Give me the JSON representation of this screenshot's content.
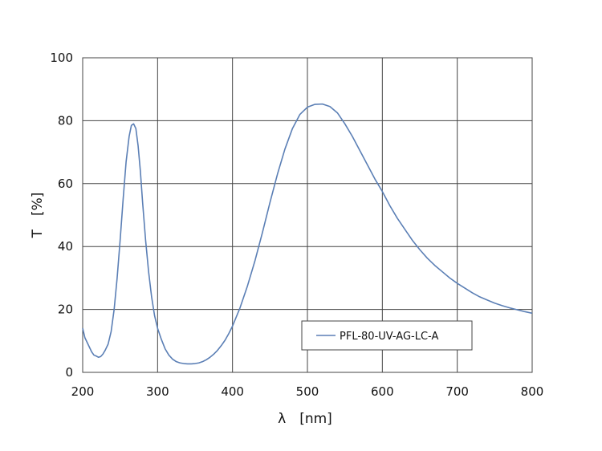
{
  "chart_data": {
    "type": "line",
    "title": "",
    "xlabel": "λ　[nm]",
    "ylabel": "T　[%]",
    "xlim": [
      200,
      800
    ],
    "ylim": [
      0,
      100
    ],
    "xticks": [
      200,
      300,
      400,
      500,
      600,
      700,
      800
    ],
    "yticks": [
      0,
      20,
      40,
      60,
      80,
      100
    ],
    "grid": true,
    "legend_position": "lower-right",
    "series": [
      {
        "name": "PFL-80-UV-AG-LC-A",
        "color": "#5b7fb5",
        "points": [
          [
            200,
            14
          ],
          [
            203,
            11
          ],
          [
            206,
            9.5
          ],
          [
            209,
            8
          ],
          [
            212,
            6.5
          ],
          [
            215,
            5.5
          ],
          [
            218,
            5.2
          ],
          [
            221,
            4.8
          ],
          [
            224,
            5
          ],
          [
            227,
            5.8
          ],
          [
            230,
            7
          ],
          [
            234,
            9
          ],
          [
            238,
            13
          ],
          [
            242,
            20
          ],
          [
            246,
            30
          ],
          [
            250,
            42
          ],
          [
            254,
            55
          ],
          [
            258,
            67
          ],
          [
            262,
            75
          ],
          [
            265,
            78.5
          ],
          [
            268,
            79
          ],
          [
            271,
            77.5
          ],
          [
            274,
            72
          ],
          [
            277,
            64
          ],
          [
            280,
            54
          ],
          [
            284,
            42
          ],
          [
            288,
            32
          ],
          [
            292,
            24
          ],
          [
            296,
            18
          ],
          [
            300,
            14
          ],
          [
            305,
            10.5
          ],
          [
            310,
            7.5
          ],
          [
            315,
            5.5
          ],
          [
            320,
            4.2
          ],
          [
            325,
            3.4
          ],
          [
            330,
            3
          ],
          [
            335,
            2.8
          ],
          [
            340,
            2.7
          ],
          [
            345,
            2.7
          ],
          [
            350,
            2.8
          ],
          [
            355,
            3
          ],
          [
            360,
            3.4
          ],
          [
            365,
            4
          ],
          [
            370,
            4.8
          ],
          [
            375,
            5.8
          ],
          [
            380,
            7
          ],
          [
            385,
            8.5
          ],
          [
            390,
            10.2
          ],
          [
            395,
            12.3
          ],
          [
            400,
            14.7
          ],
          [
            410,
            20.5
          ],
          [
            420,
            27.5
          ],
          [
            430,
            35.5
          ],
          [
            440,
            44.5
          ],
          [
            450,
            54
          ],
          [
            460,
            63
          ],
          [
            470,
            71
          ],
          [
            480,
            77.5
          ],
          [
            490,
            82
          ],
          [
            500,
            84.3
          ],
          [
            510,
            85.2
          ],
          [
            520,
            85.3
          ],
          [
            530,
            84.5
          ],
          [
            540,
            82.5
          ],
          [
            550,
            79
          ],
          [
            560,
            75
          ],
          [
            570,
            70.5
          ],
          [
            580,
            66
          ],
          [
            590,
            61.5
          ],
          [
            600,
            57.5
          ],
          [
            610,
            53
          ],
          [
            620,
            49
          ],
          [
            630,
            45.5
          ],
          [
            640,
            42
          ],
          [
            650,
            39
          ],
          [
            660,
            36.3
          ],
          [
            670,
            34
          ],
          [
            680,
            32
          ],
          [
            690,
            30
          ],
          [
            700,
            28.3
          ],
          [
            710,
            26.8
          ],
          [
            720,
            25.3
          ],
          [
            730,
            24
          ],
          [
            740,
            23
          ],
          [
            750,
            22
          ],
          [
            760,
            21.2
          ],
          [
            770,
            20.5
          ],
          [
            780,
            19.9
          ],
          [
            790,
            19.3
          ],
          [
            800,
            18.8
          ]
        ]
      }
    ]
  }
}
